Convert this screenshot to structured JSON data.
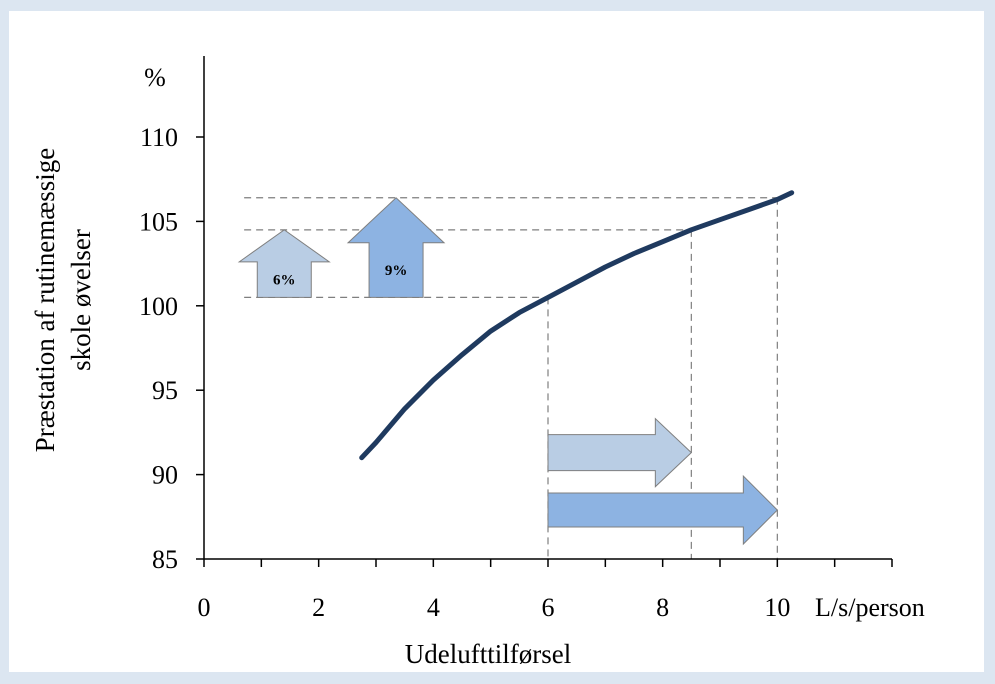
{
  "chart_data": {
    "type": "line",
    "xlabel": "Udelufttilførsel",
    "x_unit": "L/s/person",
    "ylabel_lines": [
      "Præstation af rutinemæssige",
      "skole øvelser"
    ],
    "y_unit": "%",
    "xlim": [
      0,
      12
    ],
    "ylim": [
      85,
      110
    ],
    "x_ticks": [
      0,
      2,
      4,
      6,
      8,
      10
    ],
    "x_minor_ticks": [
      1,
      3,
      5,
      7,
      9,
      11,
      12
    ],
    "y_ticks": [
      85,
      90,
      95,
      100,
      105,
      110
    ],
    "grid": false,
    "series": [
      {
        "color": "#1f3a5f",
        "x": [
          2.75,
          3.0,
          3.5,
          4.0,
          4.5,
          5.0,
          5.5,
          6.0,
          6.5,
          7.0,
          7.5,
          8.0,
          8.5,
          9.0,
          9.5,
          10.0,
          10.25
        ],
        "y": [
          91.0,
          91.9,
          93.9,
          95.6,
          97.1,
          98.5,
          99.6,
          100.5,
          101.4,
          102.3,
          103.1,
          103.8,
          104.5,
          105.1,
          105.7,
          106.3,
          106.7
        ]
      }
    ],
    "reference_lines": [
      {
        "x": 6.0,
        "y": 100.5
      },
      {
        "x": 8.5,
        "y": 104.5
      },
      {
        "x": 10.0,
        "y": 106.4
      }
    ],
    "annotations": [
      {
        "label": "6%",
        "kind": "up-arrow",
        "from": 100.5,
        "to": 104.5,
        "color": "#b9cde4"
      },
      {
        "label": "9%",
        "kind": "up-arrow",
        "from": 100.5,
        "to": 106.4,
        "color": "#8db3e2"
      },
      {
        "label": "",
        "kind": "right-arrow",
        "from": 6.0,
        "to": 8.5,
        "color": "#b9cde4"
      },
      {
        "label": "",
        "kind": "right-arrow",
        "from": 6.0,
        "to": 10.0,
        "color": "#8db3e2"
      }
    ]
  }
}
